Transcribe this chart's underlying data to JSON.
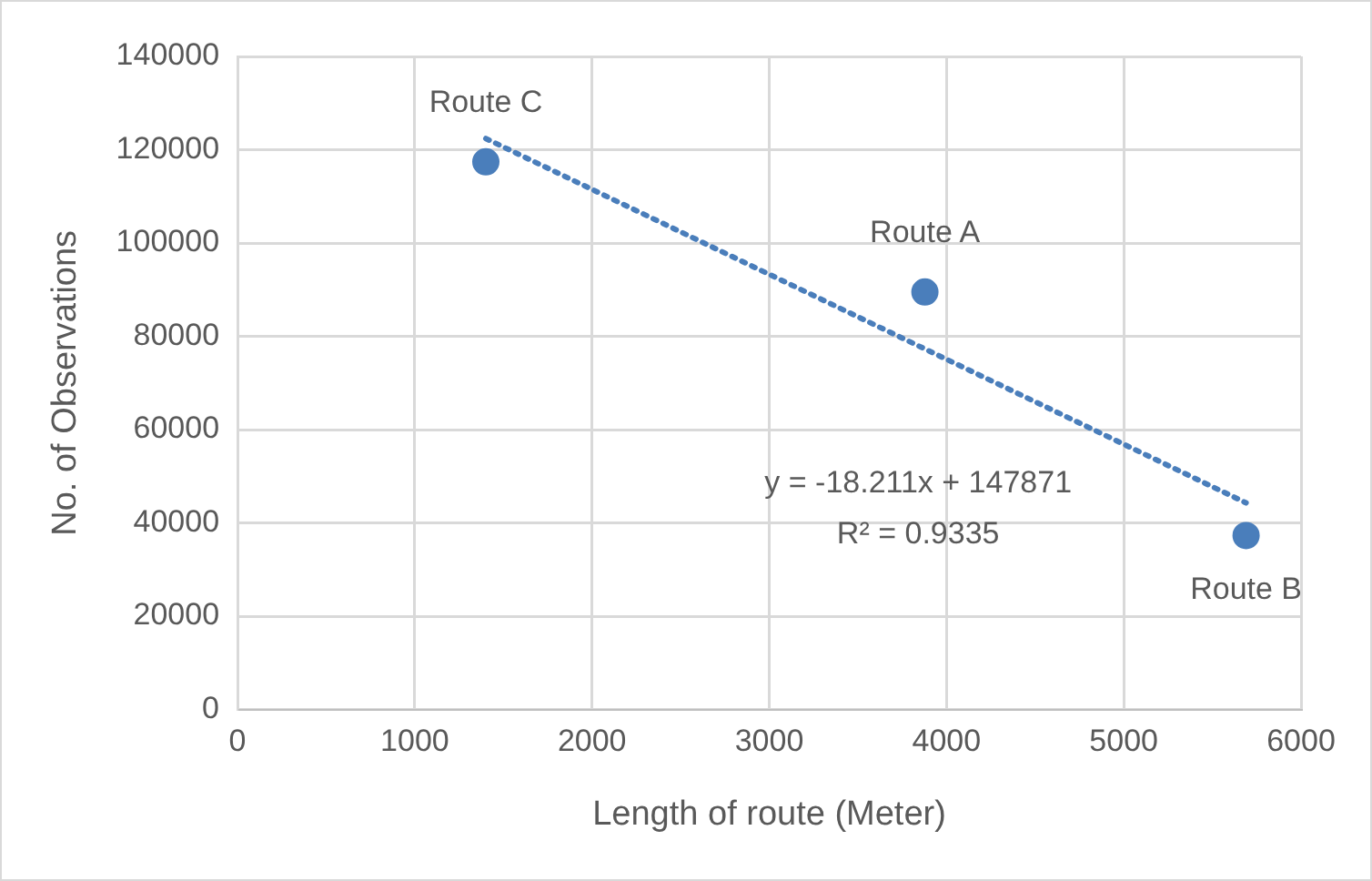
{
  "chart_data": {
    "type": "scatter",
    "xlabel": "Length of route (Meter)",
    "ylabel": "No. of Observations",
    "xlim": [
      0,
      6000
    ],
    "xticks": [
      0,
      1000,
      2000,
      3000,
      4000,
      5000,
      6000
    ],
    "ylim": [
      0,
      140000
    ],
    "yticks": [
      0,
      20000,
      40000,
      60000,
      80000,
      100000,
      120000,
      140000
    ],
    "grid": true,
    "series": [
      {
        "color": "#4a7ebb",
        "marker": "circle",
        "x": [
          3878,
          5690,
          1401
        ],
        "values": [
          89500,
          37300,
          117400
        ],
        "value_labels": [
          "Route A",
          "Route B",
          "Route C"
        ]
      },
      {
        "type": "line",
        "color": "#4a7ebb",
        "line_style": "dotted",
        "x": [
          1401,
          5690
        ],
        "values": [
          122400,
          44300
        ]
      }
    ],
    "annotations": [
      "y = -18.211x + 147871",
      "R² = 0.9335"
    ]
  }
}
